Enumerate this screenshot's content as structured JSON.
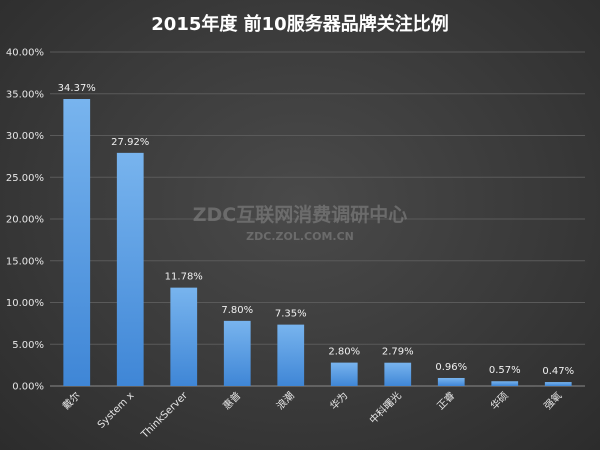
{
  "chart_data": {
    "type": "bar",
    "title": "2015年度 前10服务器品牌关注比例",
    "categories": [
      "戴尔",
      "System x",
      "ThinkServer",
      "惠普",
      "浪潮",
      "华为",
      "中科曙光",
      "正睿",
      "华硕",
      "强氧"
    ],
    "values": [
      34.37,
      27.92,
      11.78,
      7.8,
      7.35,
      2.8,
      2.79,
      0.96,
      0.57,
      0.47
    ],
    "value_labels": [
      "34.37%",
      "27.92%",
      "11.78%",
      "7.80%",
      "7.35%",
      "2.80%",
      "2.79%",
      "0.96%",
      "0.57%",
      "0.47%"
    ],
    "ylim": [
      0,
      40
    ],
    "yticks": [
      0,
      5,
      10,
      15,
      20,
      25,
      30,
      35,
      40
    ],
    "ytick_labels": [
      "0.00%",
      "5.00%",
      "10.00%",
      "15.00%",
      "20.00%",
      "25.00%",
      "30.00%",
      "35.00%",
      "40.00%"
    ],
    "grid": true,
    "xlabel": "",
    "ylabel": "",
    "colors": {
      "bar_top": "#78b4ee",
      "bar_bottom": "#3f86d6",
      "grid": "#5a5a5a",
      "text": "#e6e6e6"
    }
  },
  "watermark": {
    "line1": "ZDC互联网消费调研中心",
    "line2": "ZDC.ZOL.COM.CN"
  }
}
